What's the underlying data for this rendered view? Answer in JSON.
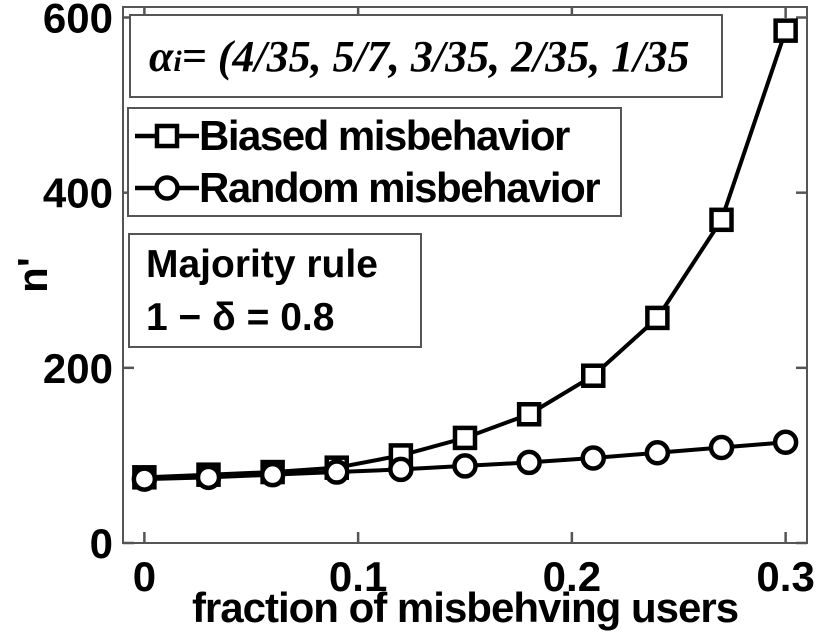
{
  "figure": {
    "background": "#ffffff",
    "ink_color": "#000000",
    "frame_color": "#555555"
  },
  "annotations": {
    "alpha_box": {
      "alpha_symbol": "α",
      "subscript": "i",
      "rest": " = (4/35, 5/7, 3/35, 2/35, 1/35"
    },
    "rule_box": {
      "line1": "Majority rule",
      "line2": "1 − δ = 0.8"
    }
  },
  "legend": {
    "items": [
      {
        "label": "Biased misbehavior",
        "marker": "square"
      },
      {
        "label": "Random misbehavior",
        "marker": "circle"
      }
    ]
  },
  "chart_data": {
    "type": "line",
    "title": "",
    "xlabel": "fraction of misbehving users",
    "ylabel": "n'",
    "x": [
      0,
      0.03,
      0.06,
      0.09,
      0.12,
      0.15,
      0.18,
      0.21,
      0.24,
      0.27,
      0.3
    ],
    "series": [
      {
        "name": "Biased misbehavior",
        "marker": "square",
        "color": "#000000",
        "values": [
          75,
          78,
          81,
          86,
          100,
          120,
          147,
          191,
          257,
          369,
          585
        ]
      },
      {
        "name": "Random misbehavior",
        "marker": "circle",
        "color": "#000000",
        "values": [
          73,
          75,
          78,
          81,
          84,
          88,
          92,
          97,
          103,
          109,
          115
        ]
      }
    ],
    "xticks": [
      0,
      0.1,
      0.2,
      0.3
    ],
    "xtick_labels": [
      "0",
      "0.1",
      "0.2",
      "0.3"
    ],
    "yticks": [
      0,
      200,
      400,
      600
    ],
    "ytick_labels": [
      "0",
      "200",
      "400",
      "600"
    ],
    "xlim": [
      -0.01,
      0.31
    ],
    "ylim": [
      0,
      612
    ],
    "grid": false,
    "legend_position": "upper-left",
    "box": true
  }
}
